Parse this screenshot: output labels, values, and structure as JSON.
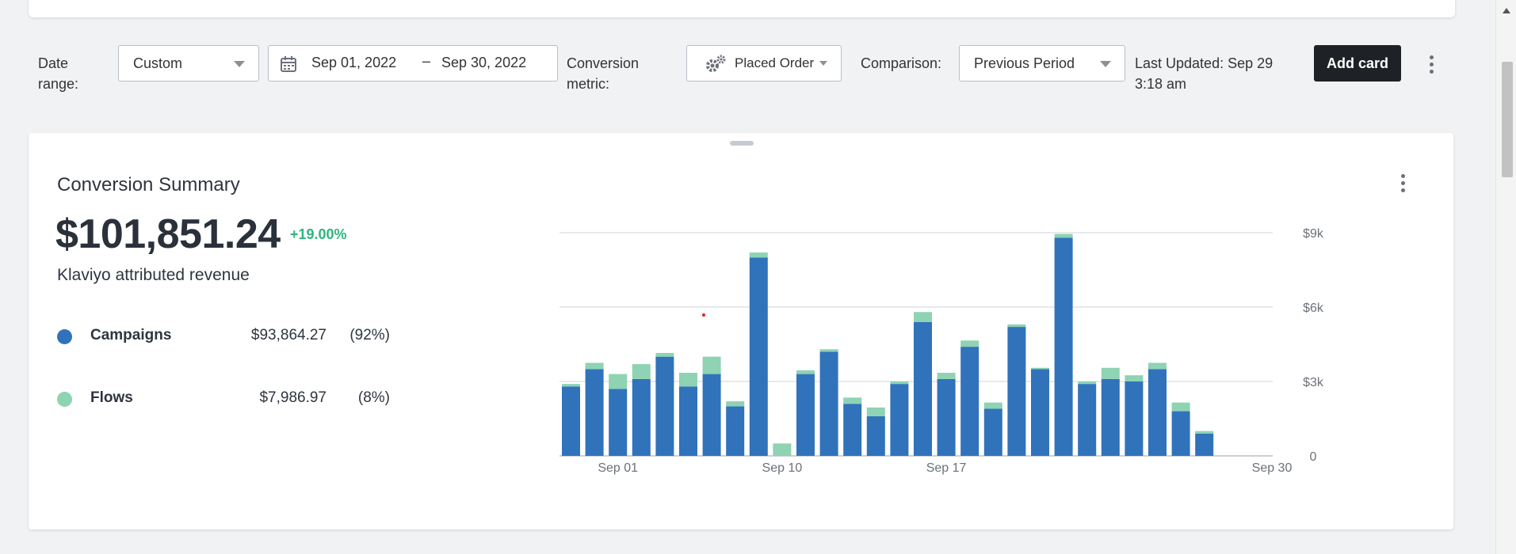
{
  "toolbar": {
    "date_range_label": "Date range:",
    "date_range_value": "Custom",
    "date_start": "Sep 01, 2022",
    "date_separator": "–",
    "date_end": "Sep 30, 2022",
    "conversion_metric_label": "Conversion metric:",
    "conversion_metric_value": "Placed Order",
    "comparison_label": "Comparison:",
    "comparison_value": "Previous Period",
    "last_updated": "Last Updated: Sep 29 3:18 am",
    "add_card_label": "Add card"
  },
  "summary": {
    "title": "Conversion Summary",
    "total": "$101,851.24",
    "change": "+19.00%",
    "subtitle": "Klaviyo attributed revenue",
    "legend": [
      {
        "name": "Campaigns",
        "value": "$93,864.27",
        "percent": "(92%)",
        "color": "#3073bb"
      },
      {
        "name": "Flows",
        "value": "$7,986.97",
        "percent": "(8%)",
        "color": "#8ed3b3"
      }
    ]
  },
  "colors": {
    "campaigns": "#3073bb",
    "flows": "#8ed3b3",
    "accent_green": "#2eb67d"
  },
  "chart_data": {
    "type": "bar",
    "stacked": true,
    "x_tick_labels": [
      "Sep 01",
      "Sep 10",
      "Sep 17",
      "Sep 30"
    ],
    "y_tick_labels": [
      "0",
      "$3k",
      "$6k",
      "$9k"
    ],
    "ylim": [
      0,
      9000
    ],
    "grid": true,
    "series": [
      {
        "name": "Campaigns",
        "values": [
          2800,
          3500,
          2700,
          3100,
          4000,
          2800,
          3300,
          2000,
          8000,
          0,
          3300,
          4200,
          2100,
          1600,
          2900,
          5400,
          3100,
          4400,
          1900,
          5200,
          3500,
          8800,
          2900,
          3100,
          3000,
          3500,
          1800,
          900,
          0
        ]
      },
      {
        "name": "Flows",
        "values": [
          100,
          250,
          600,
          600,
          150,
          550,
          700,
          200,
          200,
          500,
          150,
          100,
          250,
          350,
          100,
          400,
          250,
          250,
          250,
          100,
          50,
          150,
          100,
          450,
          250,
          250,
          350,
          100,
          0
        ]
      }
    ]
  }
}
